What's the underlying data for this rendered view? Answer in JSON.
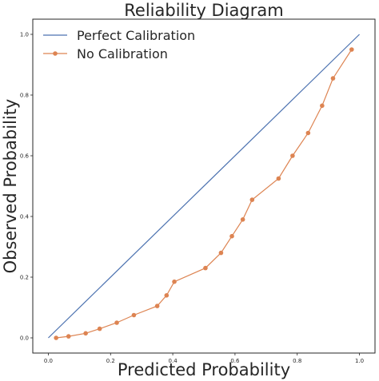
{
  "chart_data": {
    "type": "line",
    "title": "Reliability Diagram",
    "xlabel": "Predicted Probability",
    "ylabel": "Observed Probability",
    "xlim": [
      -0.05,
      1.05
    ],
    "ylim": [
      -0.05,
      1.05
    ],
    "xticks": [
      "0.0",
      "0.2",
      "0.4",
      "0.6",
      "0.8",
      "1.0"
    ],
    "yticks": [
      "0.0",
      "0.2",
      "0.4",
      "0.6",
      "0.8",
      "1.0"
    ],
    "grid": false,
    "legend_position": "top-left",
    "series": [
      {
        "name": "Perfect Calibration",
        "color": "#4c72b0",
        "marker": "none",
        "x": [
          0.0,
          1.0
        ],
        "y": [
          0.0,
          1.0
        ]
      },
      {
        "name": "No Calibration",
        "color": "#dd8452",
        "marker": "circle",
        "x": [
          0.025,
          0.065,
          0.12,
          0.165,
          0.22,
          0.275,
          0.35,
          0.38,
          0.405,
          0.505,
          0.555,
          0.59,
          0.625,
          0.655,
          0.74,
          0.785,
          0.835,
          0.88,
          0.915,
          0.975
        ],
        "y": [
          0.0,
          0.005,
          0.015,
          0.03,
          0.05,
          0.075,
          0.105,
          0.14,
          0.185,
          0.23,
          0.28,
          0.335,
          0.39,
          0.455,
          0.525,
          0.6,
          0.675,
          0.765,
          0.855,
          0.95
        ]
      }
    ]
  }
}
